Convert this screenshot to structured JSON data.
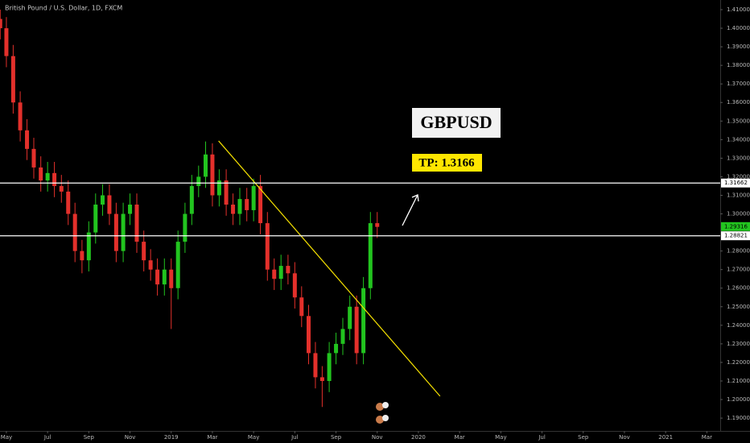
{
  "chart_data": {
    "type": "candlestick",
    "title": "British Pound / U.S. Dollar, 1D, FXCM",
    "annotations": [
      "GBPUSD",
      "TP: 1.3166"
    ],
    "up_color": "#22c41f",
    "down_color": "#e3302b",
    "xlim": [
      -0.31,
      34.65
    ],
    "ylim": [
      1.1831,
      1.4152
    ],
    "xticks": [
      {
        "value": 0,
        "label": "May"
      },
      {
        "value": 2,
        "label": "Jul"
      },
      {
        "value": 4,
        "label": "Sep"
      },
      {
        "value": 6,
        "label": "Nov"
      },
      {
        "value": 8,
        "label": "2019"
      },
      {
        "value": 10,
        "label": "Mar"
      },
      {
        "value": 12,
        "label": "May"
      },
      {
        "value": 14,
        "label": "Jul"
      },
      {
        "value": 16,
        "label": "Sep"
      },
      {
        "value": 18,
        "label": "Nov"
      },
      {
        "value": 20,
        "label": "2020"
      },
      {
        "value": 22,
        "label": "Mar"
      },
      {
        "value": 24,
        "label": "May"
      },
      {
        "value": 26,
        "label": "Jul"
      },
      {
        "value": 28,
        "label": "Sep"
      },
      {
        "value": 30,
        "label": "Nov"
      },
      {
        "value": 32,
        "label": "2021"
      },
      {
        "value": 34,
        "label": "Mar"
      }
    ],
    "yticks": [
      {
        "value": 1.19,
        "label": "1.19000"
      },
      {
        "value": 1.2,
        "label": "1.20000"
      },
      {
        "value": 1.21,
        "label": "1.21000"
      },
      {
        "value": 1.22,
        "label": "1.22000"
      },
      {
        "value": 1.23,
        "label": "1.23000"
      },
      {
        "value": 1.24,
        "label": "1.24000"
      },
      {
        "value": 1.25,
        "label": "1.25000"
      },
      {
        "value": 1.26,
        "label": "1.26000"
      },
      {
        "value": 1.27,
        "label": "1.27000"
      },
      {
        "value": 1.28,
        "label": "1.28000"
      },
      {
        "value": 1.3,
        "label": "1.30000"
      },
      {
        "value": 1.31,
        "label": "1.31000"
      },
      {
        "value": 1.32,
        "label": "1.32000"
      },
      {
        "value": 1.33,
        "label": "1.33000"
      },
      {
        "value": 1.34,
        "label": "1.34000"
      },
      {
        "value": 1.35,
        "label": "1.35000"
      },
      {
        "value": 1.36,
        "label": "1.36000"
      },
      {
        "value": 1.37,
        "label": "1.37000"
      },
      {
        "value": 1.38,
        "label": "1.38000"
      },
      {
        "value": 1.39,
        "label": "1.39000"
      },
      {
        "value": 1.4,
        "label": "1.40000"
      },
      {
        "value": 1.41,
        "label": "1.41000"
      }
    ],
    "levels": [
      1.31662,
      1.28821
    ],
    "last_price": 1.29316,
    "trendline": {
      "x": [
        10.3,
        21.05
      ],
      "y": [
        1.3393,
        1.2018
      ],
      "color": "#f5e100"
    },
    "x": [
      -0.3,
      0,
      0.33,
      0.67,
      1,
      1.33,
      1.67,
      2,
      2.33,
      2.67,
      3,
      3.33,
      3.67,
      4,
      4.33,
      4.67,
      5,
      5.33,
      5.67,
      6,
      6.33,
      6.67,
      7,
      7.33,
      7.67,
      8,
      8.33,
      8.67,
      9,
      9.33,
      9.67,
      10,
      10.33,
      10.67,
      11,
      11.33,
      11.67,
      12,
      12.33,
      12.67,
      13,
      13.33,
      13.67,
      14,
      14.33,
      14.67,
      15,
      15.33,
      15.67,
      16,
      16.33,
      16.67,
      17,
      17.33,
      17.67,
      18
    ],
    "open": [
      1.405,
      1.4,
      1.385,
      1.36,
      1.345,
      1.335,
      1.325,
      1.318,
      1.322,
      1.315,
      1.312,
      1.3,
      1.28,
      1.275,
      1.29,
      1.305,
      1.31,
      1.3,
      1.28,
      1.3,
      1.305,
      1.285,
      1.275,
      1.27,
      1.262,
      1.27,
      1.26,
      1.285,
      1.3,
      1.315,
      1.32,
      1.332,
      1.31,
      1.318,
      1.305,
      1.3,
      1.308,
      1.302,
      1.315,
      1.295,
      1.27,
      1.265,
      1.272,
      1.268,
      1.255,
      1.245,
      1.225,
      1.212,
      1.21,
      1.225,
      1.23,
      1.238,
      1.25,
      1.225,
      1.26,
      1.295
    ],
    "high": [
      1.41,
      1.406,
      1.391,
      1.366,
      1.351,
      1.341,
      1.331,
      1.328,
      1.328,
      1.321,
      1.318,
      1.306,
      1.286,
      1.296,
      1.311,
      1.316,
      1.316,
      1.306,
      1.306,
      1.311,
      1.311,
      1.291,
      1.281,
      1.276,
      1.276,
      1.276,
      1.291,
      1.306,
      1.321,
      1.326,
      1.339,
      1.338,
      1.324,
      1.324,
      1.311,
      1.314,
      1.314,
      1.319,
      1.321,
      1.301,
      1.276,
      1.278,
      1.278,
      1.274,
      1.261,
      1.251,
      1.231,
      1.218,
      1.231,
      1.236,
      1.244,
      1.256,
      1.256,
      1.266,
      1.301,
      1.301
    ],
    "low": [
      1.394,
      1.379,
      1.354,
      1.339,
      1.329,
      1.319,
      1.312,
      1.312,
      1.309,
      1.306,
      1.294,
      1.274,
      1.268,
      1.269,
      1.284,
      1.299,
      1.294,
      1.274,
      1.274,
      1.294,
      1.279,
      1.269,
      1.264,
      1.256,
      1.256,
      1.238,
      1.254,
      1.279,
      1.294,
      1.309,
      1.314,
      1.304,
      1.304,
      1.299,
      1.294,
      1.294,
      1.296,
      1.296,
      1.289,
      1.264,
      1.259,
      1.259,
      1.262,
      1.249,
      1.239,
      1.219,
      1.206,
      1.196,
      1.204,
      1.219,
      1.224,
      1.232,
      1.219,
      1.219,
      1.254,
      1.287
    ],
    "close": [
      1.4,
      1.385,
      1.36,
      1.345,
      1.335,
      1.325,
      1.318,
      1.322,
      1.315,
      1.312,
      1.3,
      1.28,
      1.275,
      1.29,
      1.305,
      1.31,
      1.3,
      1.28,
      1.3,
      1.305,
      1.285,
      1.275,
      1.27,
      1.262,
      1.27,
      1.26,
      1.285,
      1.3,
      1.315,
      1.32,
      1.332,
      1.31,
      1.318,
      1.305,
      1.3,
      1.308,
      1.302,
      1.315,
      1.295,
      1.27,
      1.265,
      1.272,
      1.268,
      1.255,
      1.245,
      1.225,
      1.212,
      1.21,
      1.225,
      1.23,
      1.238,
      1.25,
      1.225,
      1.26,
      1.295,
      1.293
    ]
  }
}
